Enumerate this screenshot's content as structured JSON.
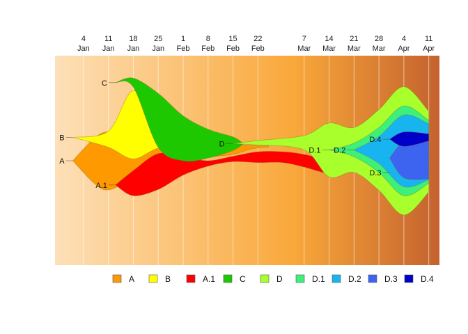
{
  "chart_data": {
    "type": "area",
    "subtype": "streamgraph / fish plot",
    "x_axis": {
      "position": "top",
      "ticks": [
        {
          "date": "2021-01-04",
          "label_day": "4",
          "label_month": "Jan"
        },
        {
          "date": "2021-01-11",
          "label_day": "11",
          "label_month": "Jan"
        },
        {
          "date": "2021-01-18",
          "label_day": "18",
          "label_month": "Jan"
        },
        {
          "date": "2021-01-25",
          "label_day": "25",
          "label_month": "Jan"
        },
        {
          "date": "2021-02-01",
          "label_day": "1",
          "label_month": "Feb"
        },
        {
          "date": "2021-02-08",
          "label_day": "8",
          "label_month": "Feb"
        },
        {
          "date": "2021-02-15",
          "label_day": "15",
          "label_month": "Feb"
        },
        {
          "date": "2021-02-22",
          "label_day": "22",
          "label_month": "Feb"
        },
        {
          "date": "2021-03-07",
          "label_day": "7",
          "label_month": "Mar"
        },
        {
          "date": "2021-03-14",
          "label_day": "14",
          "label_month": "Mar"
        },
        {
          "date": "2021-03-21",
          "label_day": "21",
          "label_month": "Mar"
        },
        {
          "date": "2021-03-28",
          "label_day": "28",
          "label_month": "Mar"
        },
        {
          "date": "2021-04-04",
          "label_day": "4",
          "label_month": "Apr"
        },
        {
          "date": "2021-04-11",
          "label_day": "11",
          "label_month": "Apr"
        }
      ],
      "range": [
        "2020-12-27",
        "2021-04-14"
      ]
    },
    "background": {
      "gradient_from": "#fde0b8",
      "gradient_mid": "#f9a83a",
      "gradient_to": "#c4622e"
    },
    "grid": true,
    "legend_position": "bottom",
    "series": [
      {
        "name": "A",
        "color": "#ff9900",
        "points": [
          {
            "date": "2021-01-01",
            "center": 0,
            "width": 0
          },
          {
            "date": "2021-01-07",
            "center": 0,
            "width": 5
          },
          {
            "date": "2021-01-11",
            "center": 0,
            "width": 6.5
          },
          {
            "date": "2021-01-18",
            "center": 0.5,
            "width": 5.2
          },
          {
            "date": "2021-01-25",
            "center": 0.5,
            "width": 4.0
          },
          {
            "date": "2021-02-01",
            "center": 0.5,
            "width": 2.4
          },
          {
            "date": "2021-02-08",
            "center": 0.9,
            "width": 1.1
          },
          {
            "date": "2021-02-15",
            "center": 1.2,
            "width": 1.0
          },
          {
            "date": "2021-02-20",
            "center": 1.5,
            "width": 0.4
          },
          {
            "date": "2021-02-25",
            "center": 1.6,
            "width": 0.1
          }
        ]
      },
      {
        "name": "A.1",
        "color": "#ff0000",
        "points": [
          {
            "date": "2021-01-13",
            "center": -2.7,
            "width": 0
          },
          {
            "date": "2021-01-18",
            "center": -2.5,
            "width": 2.8
          },
          {
            "date": "2021-01-25",
            "center": -1.2,
            "width": 4.0
          },
          {
            "date": "2021-02-01",
            "center": -0.6,
            "width": 2.0
          },
          {
            "date": "2021-02-08",
            "center": -0.3,
            "width": 0.6
          },
          {
            "date": "2021-02-15",
            "center": 0.2,
            "width": 0.6
          },
          {
            "date": "2021-02-22",
            "center": 0.4,
            "width": 1.2
          },
          {
            "date": "2021-03-01",
            "center": 0.4,
            "width": 1.2
          },
          {
            "date": "2021-03-07",
            "center": 0.0,
            "width": 1.4
          },
          {
            "date": "2021-03-14",
            "center": -0.7,
            "width": 1.4
          },
          {
            "date": "2021-03-21",
            "center": -0.9,
            "width": 0.3
          },
          {
            "date": "2021-03-26",
            "center": -0.9,
            "width": 0
          }
        ]
      },
      {
        "name": "B",
        "color": "#ffff00",
        "points": [
          {
            "date": "2021-01-01",
            "center": 2.6,
            "width": 0
          },
          {
            "date": "2021-01-11",
            "center": 2.4,
            "width": 1.8
          },
          {
            "date": "2021-01-18",
            "center": 4.0,
            "width": 7.6
          },
          {
            "date": "2021-01-25",
            "center": 2.7,
            "width": 2.6
          },
          {
            "date": "2021-02-01",
            "center": 1.5,
            "width": 0.2
          },
          {
            "date": "2021-02-04",
            "center": 1.5,
            "width": 0
          }
        ]
      },
      {
        "name": "C",
        "color": "#1ec800",
        "points": [
          {
            "date": "2021-01-13",
            "center": 8.7,
            "width": 0
          },
          {
            "date": "2021-01-18",
            "center": 8.7,
            "width": 1.0
          },
          {
            "date": "2021-01-25",
            "center": 4.5,
            "width": 6.0
          },
          {
            "date": "2021-02-01",
            "center": 2.5,
            "width": 5.0
          },
          {
            "date": "2021-02-08",
            "center": 1.9,
            "width": 3.2
          },
          {
            "date": "2021-02-15",
            "center": 1.9,
            "width": 1.5
          },
          {
            "date": "2021-02-18",
            "center": 1.9,
            "width": 0
          }
        ]
      },
      {
        "name": "D",
        "color": "#a8ff2c",
        "points": [
          {
            "date": "2021-02-15",
            "center": 1.9,
            "width": 0
          },
          {
            "date": "2021-02-22",
            "center": 2.0,
            "width": 0.5
          },
          {
            "date": "2021-03-07",
            "center": 2.0,
            "width": 1.6
          },
          {
            "date": "2021-03-14",
            "center": 1.2,
            "width": 6.0
          },
          {
            "date": "2021-03-21",
            "center": 1.2,
            "width": 5.0
          },
          {
            "date": "2021-03-28",
            "center": 1.2,
            "width": 9.0
          },
          {
            "date": "2021-04-04",
            "center": 1.1,
            "width": 14.3
          },
          {
            "date": "2021-04-11",
            "center": 1.0,
            "width": 9.0
          }
        ]
      },
      {
        "name": "D.1",
        "color": "#3cf07a",
        "points": [
          {
            "date": "2021-03-14",
            "center": 1.2,
            "width": 0
          },
          {
            "date": "2021-03-21",
            "center": 1.2,
            "width": 1.5
          },
          {
            "date": "2021-03-28",
            "center": 1.2,
            "width": 5.0
          },
          {
            "date": "2021-04-04",
            "center": 1.1,
            "width": 10.0
          },
          {
            "date": "2021-04-11",
            "center": 1.0,
            "width": 7.0
          }
        ]
      },
      {
        "name": "D.2",
        "color": "#18b4f0",
        "points": [
          {
            "date": "2021-03-21",
            "center": 1.2,
            "width": 0
          },
          {
            "date": "2021-03-28",
            "center": 1.2,
            "width": 3.0
          },
          {
            "date": "2021-04-04",
            "center": 1.1,
            "width": 8.0
          },
          {
            "date": "2021-04-11",
            "center": 1.0,
            "width": 6.2
          }
        ]
      },
      {
        "name": "D.3",
        "color": "#3c64f0",
        "points": [
          {
            "date": "2021-03-31",
            "center": 0.3,
            "width": 0
          },
          {
            "date": "2021-04-04",
            "center": 0.1,
            "width": 4.0
          },
          {
            "date": "2021-04-11",
            "center": 0.2,
            "width": 4.5
          }
        ]
      },
      {
        "name": "D.4",
        "color": "#0000c8",
        "points": [
          {
            "date": "2021-03-31",
            "center": 2.4,
            "width": 0
          },
          {
            "date": "2021-04-04",
            "center": 2.4,
            "width": 1.6
          },
          {
            "date": "2021-04-11",
            "center": 2.6,
            "width": 0.8
          }
        ]
      }
    ],
    "series_labels": [
      {
        "name": "A",
        "date": "2021-01-01",
        "value": 0
      },
      {
        "name": "B",
        "date": "2021-01-01",
        "value": 2.6
      },
      {
        "name": "C",
        "date": "2021-01-13",
        "value": 8.7
      },
      {
        "name": "A.1",
        "date": "2021-01-13",
        "value": -2.7
      },
      {
        "name": "D",
        "date": "2021-02-15",
        "value": 1.9
      },
      {
        "name": "D.1",
        "date": "2021-03-14",
        "value": 1.2
      },
      {
        "name": "D.2",
        "date": "2021-03-21",
        "value": 1.2
      },
      {
        "name": "D.3",
        "date": "2021-03-31",
        "value": -1.3
      },
      {
        "name": "D.4",
        "date": "2021-03-31",
        "value": 2.4
      }
    ],
    "y_range": [
      -10,
      11.5
    ],
    "legend": [
      {
        "name": "A",
        "color": "#ff9900"
      },
      {
        "name": "B",
        "color": "#ffff00"
      },
      {
        "name": "A.1",
        "color": "#ff0000"
      },
      {
        "name": "C",
        "color": "#1ec800"
      },
      {
        "name": "D",
        "color": "#a8ff2c"
      },
      {
        "name": "D.1",
        "color": "#3cf07a"
      },
      {
        "name": "D.2",
        "color": "#18b4f0"
      },
      {
        "name": "D.3",
        "color": "#3c64f0"
      },
      {
        "name": "D.4",
        "color": "#0000c8"
      }
    ]
  }
}
